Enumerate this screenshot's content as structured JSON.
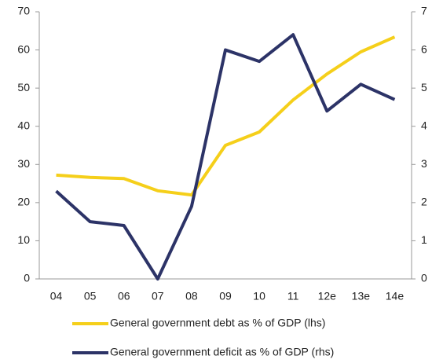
{
  "chart_data": {
    "type": "line",
    "categories": [
      "04",
      "05",
      "06",
      "07",
      "08",
      "09",
      "10",
      "11",
      "12e",
      "13e",
      "14e"
    ],
    "series": [
      {
        "name": "General government debt as % of GDP (lhs)",
        "color": "#f5cf1a",
        "values": [
          27.2,
          26.6,
          26.3,
          23.1,
          22.0,
          35.0,
          38.5,
          46.9,
          53.7,
          59.5,
          63.4
        ]
      },
      {
        "name": "General government deficit as % of GDP (rhs)",
        "color": "#2c3367",
        "axis": "y2",
        "values": [
          2.3,
          1.5,
          1.4,
          0,
          1.9,
          6.0,
          5.7,
          6.4,
          4.4,
          5.1,
          4.7
        ]
      }
    ],
    "ylim": [
      0,
      70
    ],
    "yticks": [
      0,
      10,
      20,
      30,
      40,
      50,
      60,
      70
    ],
    "y2lim": [
      0,
      7
    ],
    "y2ticks": [
      0,
      1,
      2,
      3,
      4,
      5,
      6,
      7
    ]
  }
}
